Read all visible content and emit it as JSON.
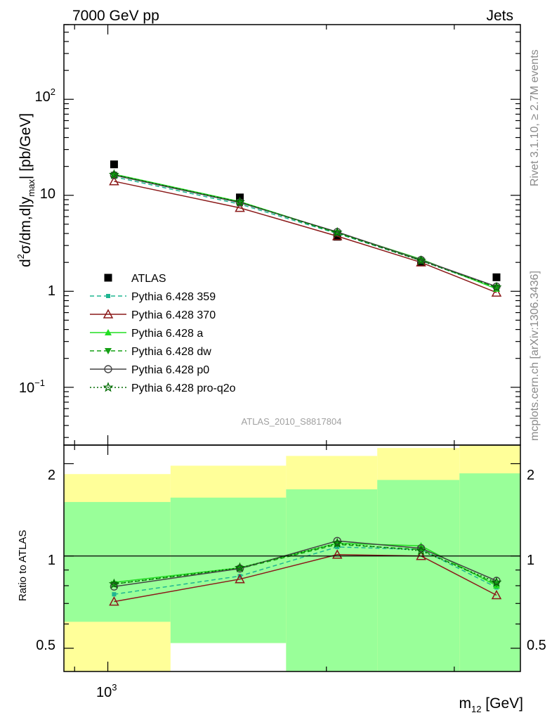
{
  "header": {
    "left": "7000 GeV pp",
    "right": "Jets"
  },
  "side_labels": {
    "rivet": "Rivet 3.1.10, ≥ 2.7M events",
    "mcplots": "mcplots.cern.ch [arXiv:1306.3436]"
  },
  "analysis_id": "ATLAS_2010_S8817804",
  "axes": {
    "y_main_label_parts": [
      "d",
      "2",
      "σ/dm,d|y",
      "max",
      "| [pb/GeV]"
    ],
    "y_ratio_label": "Ratio to ATLAS",
    "x_label_parts": [
      "m",
      "12",
      " [GeV]"
    ],
    "x_tick_base": "10",
    "x_tick_exp": "3",
    "y_main_ticks": [
      {
        "value": 100,
        "base": "10",
        "exp": "2"
      },
      {
        "value": 10,
        "base": "10",
        "exp": ""
      },
      {
        "value": 1,
        "base": "1",
        "exp": ""
      },
      {
        "value": 0.1,
        "base": "10",
        "exp": "−1"
      }
    ],
    "y_ratio_ticks": [
      "2",
      "1",
      "0.5"
    ]
  },
  "colors": {
    "atlas": "#000000",
    "p359": "#1fb591",
    "p370": "#8b1a1a",
    "pa": "#22dd22",
    "pdw": "#15a015",
    "pp0": "#444444",
    "pq2o": "#006b00",
    "band_syst": "#ffff99",
    "band_stat": "#99ff99"
  },
  "chart_data": [
    {
      "type": "line",
      "title": "",
      "xlabel": "m_12 [GeV]",
      "ylabel": "d²σ/dm,d|y_max| [pb/GeV]",
      "xscale": "log",
      "yscale": "log",
      "xlim": [
        870,
        3700
      ],
      "ylim": [
        0.025,
        600
      ],
      "legend_position": "lower-left",
      "x": [
        1020,
        1520,
        2070,
        2700,
        3430
      ],
      "series": [
        {
          "name": "ATLAS",
          "key": "atlas",
          "marker": "square",
          "line": "none",
          "values": [
            21,
            9.5,
            3.7,
            2.0,
            1.4
          ]
        },
        {
          "name": "Pythia 6.428 359",
          "key": "p359",
          "marker": "square-small",
          "line": "dashed",
          "values": [
            15.6,
            8.1,
            4.0,
            2.09,
            1.08
          ]
        },
        {
          "name": "Pythia 6.428 370",
          "key": "p370",
          "marker": "triangle-open",
          "line": "solid",
          "values": [
            14.0,
            7.4,
            3.75,
            2.0,
            0.97
          ]
        },
        {
          "name": "Pythia 6.428 a",
          "key": "pa",
          "marker": "triangle",
          "line": "solid",
          "values": [
            16.6,
            8.6,
            4.1,
            2.16,
            1.06
          ]
        },
        {
          "name": "Pythia 6.428 dw",
          "key": "pdw",
          "marker": "triangle-down",
          "line": "dashed",
          "values": [
            16.4,
            8.5,
            4.05,
            2.1,
            1.1
          ]
        },
        {
          "name": "Pythia 6.428 p0",
          "key": "pp0",
          "marker": "circle-open",
          "line": "solid",
          "values": [
            16.2,
            8.4,
            4.15,
            2.12,
            1.12
          ]
        },
        {
          "name": "Pythia 6.428 pro-q2o",
          "key": "pq2o",
          "marker": "star-open",
          "line": "dotted",
          "values": [
            16.4,
            8.5,
            4.1,
            2.08,
            1.1
          ]
        }
      ]
    },
    {
      "type": "line",
      "title": "",
      "xlabel": "m_12 [GeV]",
      "ylabel": "Ratio to ATLAS",
      "xscale": "log",
      "yscale": "log",
      "xlim": [
        870,
        3700
      ],
      "ylim": [
        0.42,
        2.3
      ],
      "reference_line": 1,
      "bands": [
        {
          "xlo": 870,
          "xhi": 1220,
          "stat": [
            0.61,
            1.5
          ],
          "syst": [
            0.42,
            1.85
          ]
        },
        {
          "xlo": 1220,
          "xhi": 1760,
          "stat": [
            0.52,
            1.55
          ],
          "syst": [
            0.52,
            1.97
          ]
        },
        {
          "xlo": 1760,
          "xhi": 2350,
          "stat": [
            0.42,
            1.65
          ],
          "syst": [
            0.42,
            2.12
          ]
        },
        {
          "xlo": 2350,
          "xhi": 3050,
          "stat": [
            0.42,
            1.77
          ],
          "syst": [
            0.42,
            2.25
          ]
        },
        {
          "xlo": 3050,
          "xhi": 3700,
          "stat": [
            0.42,
            1.86
          ],
          "syst": [
            0.42,
            2.3
          ]
        }
      ],
      "x": [
        1020,
        1520,
        2070,
        2700,
        3430
      ],
      "series": [
        {
          "name": "Pythia 6.428 359",
          "key": "p359",
          "values": [
            0.75,
            0.86,
            1.07,
            1.05,
            0.79
          ]
        },
        {
          "name": "Pythia 6.428 370",
          "key": "p370",
          "values": [
            0.71,
            0.84,
            1.01,
            1.0,
            0.745
          ]
        },
        {
          "name": "Pythia 6.428 a",
          "key": "pa",
          "values": [
            0.82,
            0.915,
            1.1,
            1.08,
            0.8
          ]
        },
        {
          "name": "Pythia 6.428 dw",
          "key": "pdw",
          "values": [
            0.81,
            0.91,
            1.09,
            1.05,
            0.81
          ]
        },
        {
          "name": "Pythia 6.428 p0",
          "key": "pp0",
          "values": [
            0.795,
            0.91,
            1.12,
            1.06,
            0.83
          ]
        },
        {
          "name": "Pythia 6.428 pro-q2o",
          "key": "pq2o",
          "values": [
            0.81,
            0.915,
            1.1,
            1.04,
            0.82
          ]
        }
      ]
    }
  ]
}
